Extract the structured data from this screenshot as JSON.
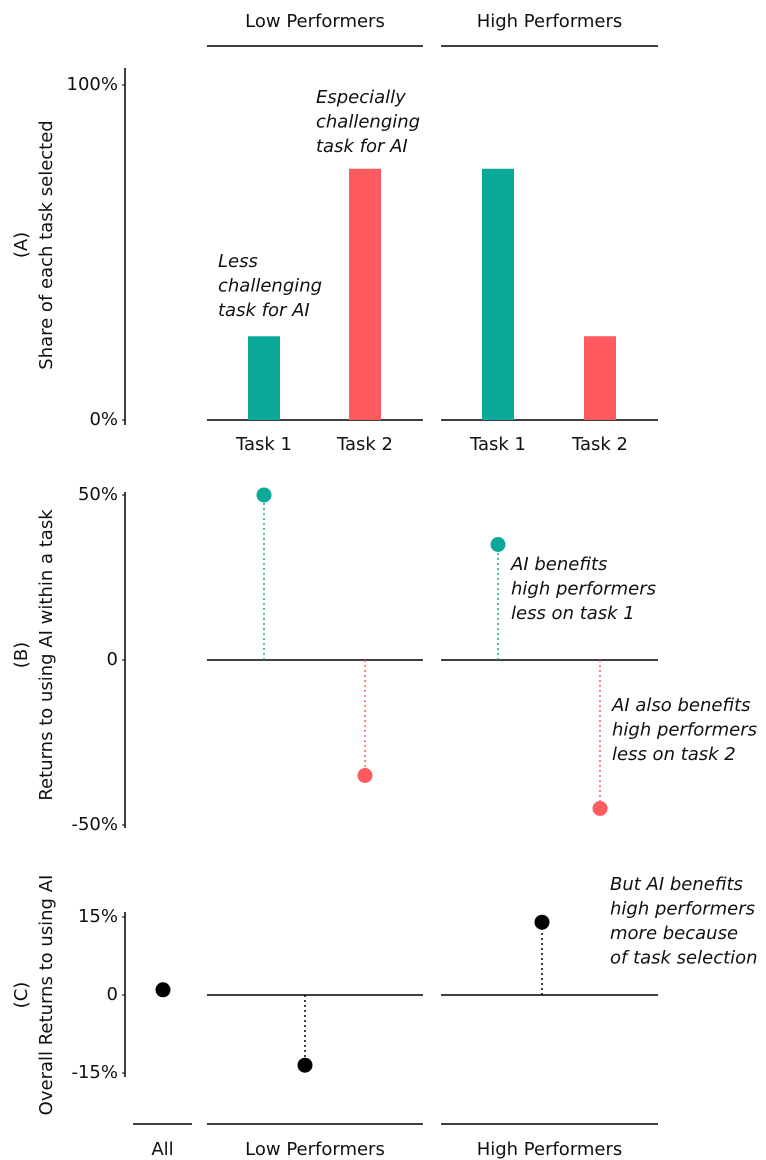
{
  "chart_data": [
    {
      "type": "bar",
      "groups": [
        "Low Performers",
        "High Performers"
      ],
      "categories": [
        "Task 1",
        "Task 2"
      ],
      "colors": [
        "#0aa898",
        "#ff5a5f"
      ],
      "ylabel": [
        "(A)",
        "Share of each task selected"
      ],
      "values": [
        [
          25,
          75
        ],
        [
          75,
          25
        ]
      ],
      "ylim": [
        0,
        100
      ],
      "yticks": [
        {
          "value": 0,
          "label": "0%"
        },
        {
          "value": 100,
          "label": "100%"
        }
      ],
      "annotations": [
        {
          "lines": [
            "Less",
            "challenging",
            "task for AI"
          ],
          "color": "#0aa898"
        },
        {
          "lines": [
            "Especially",
            "challenging",
            "task for AI"
          ],
          "color": "#ff5a5f"
        }
      ]
    },
    {
      "type": "lollipop",
      "colors": [
        "#0aa898",
        "#ff5a5f"
      ],
      "ylabel": [
        "(B)",
        "Returns to using AI within a task"
      ],
      "values": [
        [
          50,
          -35
        ],
        [
          35,
          -45
        ]
      ],
      "ylim": [
        -50,
        50
      ],
      "yticks": [
        {
          "value": -50,
          "label": "-50%"
        },
        0,
        {
          "value": 50,
          "label": "50%"
        }
      ],
      "annotations": [
        {
          "lines": [
            "AI benefits",
            "high performers",
            "less on task 1"
          ],
          "color": "#0aa898"
        },
        {
          "lines": [
            "AI also benefits",
            "high performers",
            "less on task 2"
          ],
          "color": "#ff5a5f"
        }
      ]
    },
    {
      "type": "dot",
      "groups": [
        "All",
        "Low Performers",
        "High Performers"
      ],
      "color": "#000000",
      "ylabel": [
        "(C)",
        "Overall Returns to using AI"
      ],
      "values": [
        1,
        -13.5,
        14
      ],
      "ylim": [
        -15,
        15
      ],
      "yticks": [
        {
          "value": -15,
          "label": "-15%"
        },
        0,
        {
          "value": 15,
          "label": "15%"
        }
      ],
      "annotations": [
        {
          "lines": [
            "But AI benefits",
            "high performers",
            "more because",
            "of task selection"
          ],
          "color": "#000000"
        }
      ]
    }
  ]
}
